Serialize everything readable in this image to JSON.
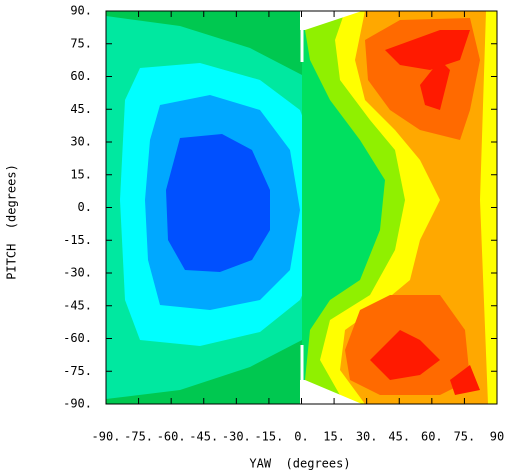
{
  "chart_data": {
    "type": "contour",
    "xlabel": "YAW  (degrees)",
    "ylabel": "PITCH  (degrees)",
    "xlim": [
      -90,
      90
    ],
    "ylim": [
      -90,
      90
    ],
    "xticks": [
      {
        "value": -90,
        "label": "-90."
      },
      {
        "value": -75,
        "label": "-75."
      },
      {
        "value": -60,
        "label": "-60."
      },
      {
        "value": -45,
        "label": "-45."
      },
      {
        "value": -30,
        "label": "-30."
      },
      {
        "value": -15,
        "label": "-15."
      },
      {
        "value": 0,
        "label": "0."
      },
      {
        "value": 15,
        "label": "15."
      },
      {
        "value": 30,
        "label": "30."
      },
      {
        "value": 45,
        "label": "45."
      },
      {
        "value": 60,
        "label": "60."
      },
      {
        "value": 75,
        "label": "75."
      },
      90
    ],
    "yticks": [
      {
        "value": 90,
        "label": "90."
      },
      {
        "value": 75,
        "label": "75."
      },
      {
        "value": 60,
        "label": "60."
      },
      {
        "value": 45,
        "label": "45."
      },
      {
        "value": 30,
        "label": "30."
      },
      {
        "value": 15,
        "label": "15."
      },
      {
        "value": 0,
        "label": "0."
      },
      {
        "value": -15,
        "label": "-15."
      },
      {
        "value": -30,
        "label": "-30."
      },
      {
        "value": -45,
        "label": "-45."
      },
      {
        "value": -60,
        "label": "-60."
      },
      {
        "value": -75,
        "label": "-75."
      },
      {
        "value": -90,
        "label": "-90."
      }
    ],
    "colors": [
      "#00e8a0",
      "#00c850",
      "#00ffff",
      "#00a8ff",
      "#0050ff",
      "#00e060",
      "#90f000",
      "#ffff00",
      "#ffa800",
      "#ff6a00",
      "#ff1a00"
    ]
  }
}
